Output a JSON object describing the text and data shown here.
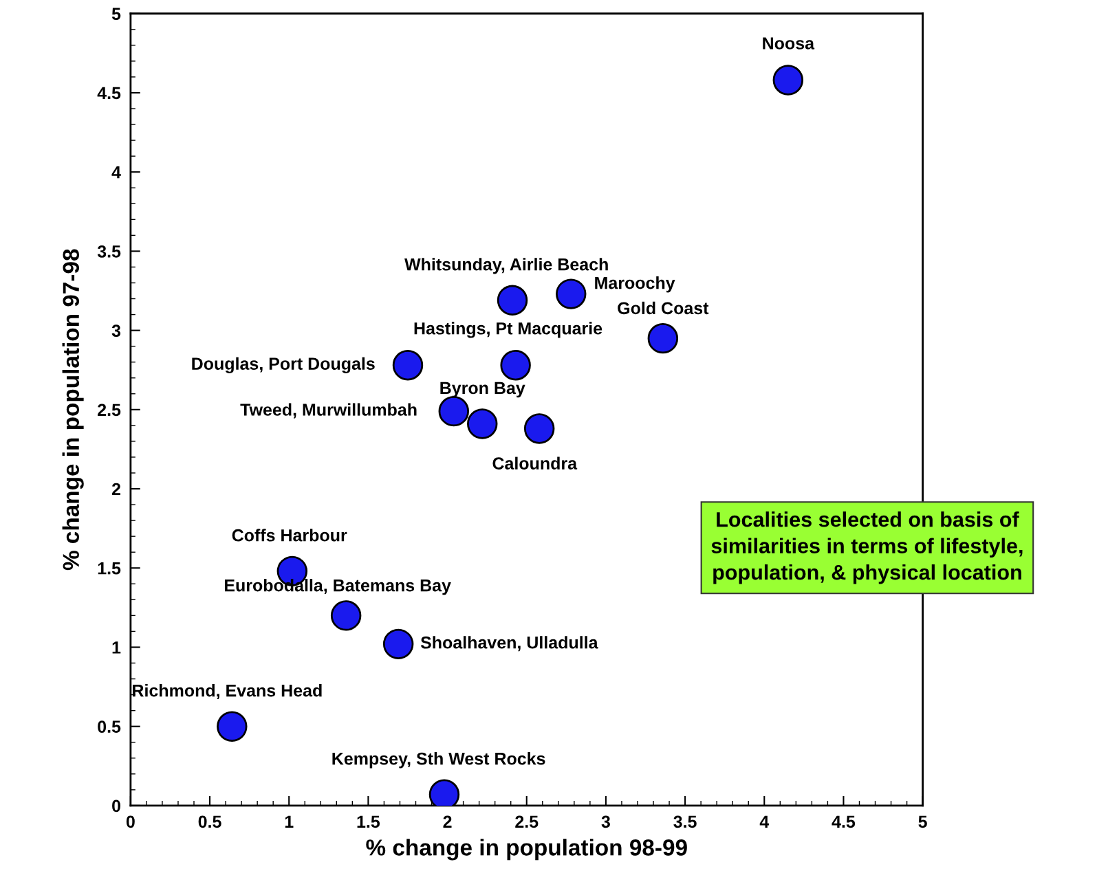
{
  "chart_data": {
    "type": "scatter",
    "xlabel": "% change in population 98-99",
    "ylabel": "% change in population 97-98",
    "xlim": [
      0,
      5
    ],
    "ylim": [
      0,
      5
    ],
    "xticks": [
      0,
      0.5,
      1,
      1.5,
      2,
      2.5,
      3,
      3.5,
      4,
      4.5,
      5
    ],
    "yticks": [
      0,
      0.5,
      1,
      1.5,
      2,
      2.5,
      3,
      3.5,
      4,
      4.5,
      5
    ],
    "grid": false,
    "marker": "circle",
    "series": [
      {
        "color": "#1a1aee",
        "x": [
          4.15,
          2.41,
          2.78,
          3.36,
          2.43,
          1.75,
          2.04,
          2.22,
          2.58,
          1.02,
          1.36,
          1.69,
          0.64,
          1.98
        ],
        "values": [
          4.58,
          3.19,
          3.23,
          2.95,
          2.78,
          2.78,
          2.49,
          2.41,
          2.38,
          1.48,
          1.2,
          1.02,
          0.5,
          0.07
        ]
      }
    ],
    "annotations": [
      {
        "text": "Noosa",
        "x": 4.15,
        "y": 4.58
      },
      {
        "text": "Whitsunday, Airlie Beach",
        "x": 2.41,
        "y": 3.19
      },
      {
        "text": "Maroochy",
        "x": 2.78,
        "y": 3.23
      },
      {
        "text": "Gold Coast",
        "x": 3.36,
        "y": 2.95
      },
      {
        "text": "Hastings, Pt Macquarie",
        "x": 2.43,
        "y": 2.78
      },
      {
        "text": "Douglas, Port Dougals",
        "x": 1.75,
        "y": 2.78
      },
      {
        "text": "Tweed, Murwillumbah",
        "x": 2.04,
        "y": 2.49
      },
      {
        "text": "Byron Bay",
        "x": 2.22,
        "y": 2.41
      },
      {
        "text": "Caloundra",
        "x": 2.58,
        "y": 2.38
      },
      {
        "text": "Coffs Harbour",
        "x": 1.02,
        "y": 1.48
      },
      {
        "text": "Eurobodalla, Batemans Bay",
        "x": 1.36,
        "y": 1.2
      },
      {
        "text": "Shoalhaven, Ulladulla",
        "x": 1.69,
        "y": 1.02
      },
      {
        "text": "Richmond, Evans Head",
        "x": 0.64,
        "y": 0.5
      },
      {
        "text": "Kempsey, Sth West Rocks",
        "x": 1.98,
        "y": 0.07
      },
      "Localities selected on basis of\nsimilarities in terms of lifestyle,\npopulation, & physical location"
    ]
  }
}
